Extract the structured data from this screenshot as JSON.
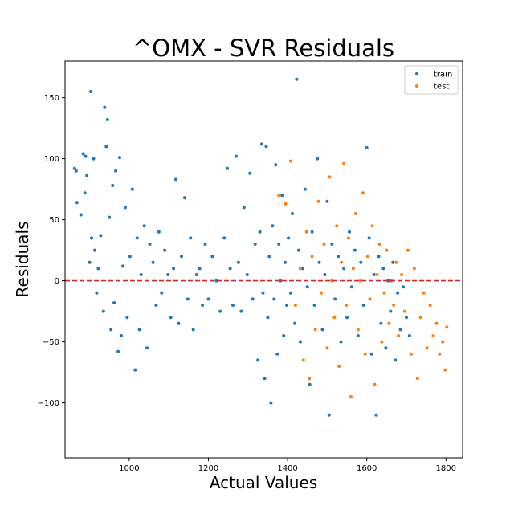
{
  "chart_data": {
    "type": "scatter",
    "title": "^OMX - SVR Residuals",
    "xlabel": "Actual Values",
    "ylabel": "Residuals",
    "xlim": [
      838,
      1842
    ],
    "ylim": [
      -145,
      180
    ],
    "xticks": [
      1000,
      1200,
      1400,
      1600,
      1800
    ],
    "yticks": [
      -100,
      -50,
      0,
      50,
      100,
      150
    ],
    "grid": false,
    "legend_position": "top-right",
    "reference_line": {
      "y": 0,
      "color": "#d62728",
      "style": "dashed"
    },
    "series": [
      {
        "name": "train",
        "color": "#1f77b4",
        "points": [
          [
            862,
            92
          ],
          [
            866,
            90
          ],
          [
            868,
            64
          ],
          [
            878,
            54
          ],
          [
            884,
            104
          ],
          [
            888,
            72
          ],
          [
            890,
            102
          ],
          [
            893,
            86
          ],
          [
            900,
            15
          ],
          [
            903,
            155
          ],
          [
            905,
            35
          ],
          [
            910,
            100
          ],
          [
            913,
            25
          ],
          [
            918,
            -10
          ],
          [
            922,
            10
          ],
          [
            928,
            37
          ],
          [
            935,
            -25
          ],
          [
            938,
            142
          ],
          [
            942,
            110
          ],
          [
            945,
            132
          ],
          [
            950,
            52
          ],
          [
            954,
            -40
          ],
          [
            958,
            78
          ],
          [
            962,
            -18
          ],
          [
            966,
            90
          ],
          [
            972,
            -58
          ],
          [
            976,
            101
          ],
          [
            980,
            -45
          ],
          [
            984,
            12
          ],
          [
            990,
            60
          ],
          [
            995,
            -30
          ],
          [
            1002,
            20
          ],
          [
            1008,
            75
          ],
          [
            1015,
            -73
          ],
          [
            1020,
            35
          ],
          [
            1026,
            -40
          ],
          [
            1030,
            5
          ],
          [
            1038,
            45
          ],
          [
            1045,
            -55
          ],
          [
            1052,
            30
          ],
          [
            1060,
            15
          ],
          [
            1068,
            -20
          ],
          [
            1075,
            40
          ],
          [
            1082,
            -10
          ],
          [
            1090,
            25
          ],
          [
            1098,
            5
          ],
          [
            1105,
            -30
          ],
          [
            1112,
            10
          ],
          [
            1118,
            83
          ],
          [
            1125,
            -35
          ],
          [
            1132,
            20
          ],
          [
            1140,
            68
          ],
          [
            1148,
            -15
          ],
          [
            1155,
            35
          ],
          [
            1162,
            -40
          ],
          [
            1170,
            5
          ],
          [
            1178,
            10
          ],
          [
            1185,
            -20
          ],
          [
            1192,
            30
          ],
          [
            1200,
            -15
          ],
          [
            1210,
            20
          ],
          [
            1220,
            0
          ],
          [
            1230,
            -25
          ],
          [
            1240,
            35
          ],
          [
            1248,
            92
          ],
          [
            1255,
            10
          ],
          [
            1262,
            -20
          ],
          [
            1270,
            102
          ],
          [
            1276,
            15
          ],
          [
            1283,
            -25
          ],
          [
            1290,
            60
          ],
          [
            1298,
            5
          ],
          [
            1305,
            88
          ],
          [
            1312,
            -15
          ],
          [
            1318,
            30
          ],
          [
            1325,
            -65
          ],
          [
            1330,
            40
          ],
          [
            1335,
            112
          ],
          [
            1338,
            -10
          ],
          [
            1342,
            -80
          ],
          [
            1346,
            110
          ],
          [
            1350,
            -30
          ],
          [
            1354,
            20
          ],
          [
            1358,
            -100
          ],
          [
            1362,
            45
          ],
          [
            1366,
            -15
          ],
          [
            1370,
            95
          ],
          [
            1374,
            -60
          ],
          [
            1378,
            30
          ],
          [
            1382,
            0
          ],
          [
            1386,
            70
          ],
          [
            1390,
            -45
          ],
          [
            1394,
            15
          ],
          [
            1398,
            -20
          ],
          [
            1402,
            35
          ],
          [
            1408,
            -10
          ],
          [
            1412,
            55
          ],
          [
            1418,
            -35
          ],
          [
            1423,
            165
          ],
          [
            1428,
            25
          ],
          [
            1432,
            -50
          ],
          [
            1438,
            10
          ],
          [
            1444,
            75
          ],
          [
            1450,
            -5
          ],
          [
            1456,
            -85
          ],
          [
            1462,
            40
          ],
          [
            1468,
            -20
          ],
          [
            1475,
            100
          ],
          [
            1480,
            15
          ],
          [
            1488,
            -40
          ],
          [
            1494,
            5
          ],
          [
            1500,
            65
          ],
          [
            1505,
            -110
          ],
          [
            1512,
            30
          ],
          [
            1520,
            -15
          ],
          [
            1528,
            20
          ],
          [
            1535,
            -50
          ],
          [
            1542,
            10
          ],
          [
            1550,
            -30
          ],
          [
            1556,
            40
          ],
          [
            1562,
            -5
          ],
          [
            1570,
            25
          ],
          [
            1578,
            -45
          ],
          [
            1585,
            15
          ],
          [
            1592,
            -20
          ],
          [
            1600,
            109
          ],
          [
            1606,
            35
          ],
          [
            1612,
            -60
          ],
          [
            1618,
            5
          ],
          [
            1624,
            -110
          ],
          [
            1630,
            20
          ],
          [
            1636,
            -35
          ],
          [
            1642,
            10
          ],
          [
            1648,
            -55
          ],
          [
            1654,
            0
          ],
          [
            1660,
            -25
          ],
          [
            1666,
            15
          ],
          [
            1672,
            -65
          ],
          [
            1678,
            -10
          ],
          [
            1685,
            -40
          ],
          [
            1692,
            -5
          ],
          [
            1700,
            -30
          ],
          [
            1708,
            -45
          ]
        ]
      },
      {
        "name": "test",
        "color": "#ff7f0e",
        "points": [
          [
            1378,
            70
          ],
          [
            1395,
            63
          ],
          [
            1408,
            98
          ],
          [
            1420,
            -20
          ],
          [
            1432,
            10
          ],
          [
            1440,
            -65
          ],
          [
            1448,
            40
          ],
          [
            1455,
            -80
          ],
          [
            1462,
            20
          ],
          [
            1470,
            -40
          ],
          [
            1478,
            65
          ],
          [
            1485,
            -10
          ],
          [
            1492,
            30
          ],
          [
            1500,
            -55
          ],
          [
            1506,
            85
          ],
          [
            1512,
            0
          ],
          [
            1518,
            -30
          ],
          [
            1524,
            45
          ],
          [
            1530,
            -70
          ],
          [
            1536,
            15
          ],
          [
            1542,
            96
          ],
          [
            1548,
            -20
          ],
          [
            1554,
            35
          ],
          [
            1560,
            -95
          ],
          [
            1566,
            10
          ],
          [
            1572,
            55
          ],
          [
            1578,
            -40
          ],
          [
            1584,
            0
          ],
          [
            1590,
            72
          ],
          [
            1596,
            -60
          ],
          [
            1602,
            20
          ],
          [
            1608,
            -15
          ],
          [
            1614,
            45
          ],
          [
            1620,
            -85
          ],
          [
            1626,
            5
          ],
          [
            1632,
            30
          ],
          [
            1638,
            -50
          ],
          [
            1644,
            -10
          ],
          [
            1650,
            25
          ],
          [
            1656,
            -35
          ],
          [
            1662,
            0
          ],
          [
            1668,
            -20
          ],
          [
            1674,
            15
          ],
          [
            1680,
            -45
          ],
          [
            1688,
            5
          ],
          [
            1696,
            -25
          ],
          [
            1704,
            25
          ],
          [
            1712,
            -60
          ],
          [
            1720,
            10
          ],
          [
            1728,
            -80
          ],
          [
            1736,
            -30
          ],
          [
            1744,
            -10
          ],
          [
            1752,
            -55
          ],
          [
            1760,
            -20
          ],
          [
            1768,
            -45
          ],
          [
            1776,
            -35
          ],
          [
            1784,
            -60
          ],
          [
            1792,
            -50
          ],
          [
            1798,
            -73
          ],
          [
            1802,
            -38
          ]
        ]
      }
    ]
  }
}
